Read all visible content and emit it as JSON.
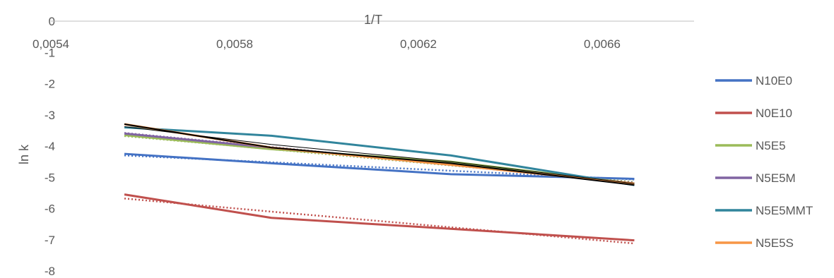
{
  "chart_data": {
    "type": "line",
    "title": "",
    "xlabel": "1/T",
    "ylabel": "ln k",
    "xlim": [
      0.0054,
      0.0068
    ],
    "ylim": [
      -8,
      0
    ],
    "x_ticks": [
      0.0054,
      0.0058,
      0.0062,
      0.0066
    ],
    "x_tick_labels": [
      "0,0054",
      "0,0058",
      "0,0062",
      "0,0066"
    ],
    "y_ticks": [
      0,
      -1,
      -2,
      -3,
      -4,
      -5,
      -6,
      -7,
      -8
    ],
    "y_tick_labels": [
      "0",
      "-1",
      "-2",
      "-3",
      "-4",
      "-5",
      "-6",
      "-7",
      "-8"
    ],
    "x_axis_position": "top",
    "grid": false,
    "legend_position": "right",
    "x": [
      0.00556,
      0.00588,
      0.00627,
      0.00667
    ],
    "series": [
      {
        "name": "N10E0",
        "color": "#4472C4",
        "values": [
          -4.25,
          -4.55,
          -4.9,
          -5.05
        ],
        "trendline": [
          -4.3,
          -4.52,
          -4.79,
          -5.07
        ]
      },
      {
        "name": "N0E10",
        "color": "#C0504D",
        "values": [
          -5.55,
          -6.3,
          -6.65,
          -7.02
        ],
        "trendline": [
          -5.68,
          -6.1,
          -6.6,
          -7.12
        ]
      },
      {
        "name": "N5E5",
        "color": "#9BBB59",
        "values": [
          -3.65,
          -4.1,
          -4.5,
          -5.2
        ],
        "trendline": [
          -3.68,
          -4.1,
          -4.62,
          -5.15
        ]
      },
      {
        "name": "N5E5M",
        "color": "#8064A2",
        "values": [
          -3.6,
          -4.05,
          -4.6,
          -5.2
        ],
        "trendline": [
          -3.58,
          -4.03,
          -4.6,
          -5.17
        ]
      },
      {
        "name": "N5E5MMT",
        "color": "#31859C",
        "values": [
          -3.4,
          -3.67,
          -4.3,
          -5.25
        ],
        "trendline": null
      },
      {
        "name": "N5E5S",
        "color": "#F79646",
        "values": [
          -3.3,
          -4.05,
          -4.6,
          -5.2
        ],
        "trendline": null
      }
    ],
    "extra_lines": [
      {
        "color": "#000000",
        "width": 2,
        "values": [
          -3.3,
          -4.05,
          -4.55,
          -5.25
        ]
      },
      {
        "color": "#000000",
        "width": 1,
        "values": [
          -3.38,
          -3.95,
          -4.5,
          -5.2
        ]
      }
    ]
  }
}
